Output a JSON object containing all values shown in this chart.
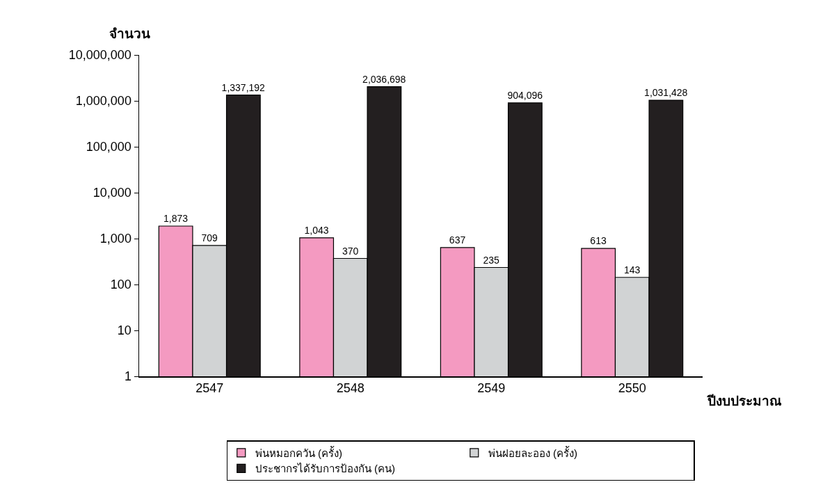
{
  "chart_data": {
    "type": "bar",
    "ylabel": "จำนวน",
    "xlabel": "ปีงบประมาณ",
    "categories": [
      "2547",
      "2548",
      "2549",
      "2550"
    ],
    "series": [
      {
        "name": "พ่นหมอกควัน (ครั้ง)",
        "color": "#f49ac1",
        "values": [
          1873,
          1043,
          637,
          613
        ],
        "value_labels": [
          "1,873",
          "1,043",
          "637",
          "613"
        ]
      },
      {
        "name": "พ่นฝอยละออง (ครั้ง)",
        "color": "#d1d3d4",
        "values": [
          709,
          370,
          235,
          143
        ],
        "value_labels": [
          "709",
          "370",
          "235",
          "143"
        ]
      },
      {
        "name": "ประชากรได้รับการป้องกัน (คน)",
        "color": "#231f20",
        "values": [
          1337192,
          2036698,
          904096,
          1031428
        ],
        "value_labels": [
          "1,337,192",
          "2,036,698",
          "904,096",
          "1,031,428"
        ]
      }
    ],
    "log": "y",
    "ylim": [
      1,
      10000000
    ],
    "yticks": [
      {
        "value": 1,
        "label": "1"
      },
      {
        "value": 10,
        "label": "10"
      },
      {
        "value": 100,
        "label": "100"
      },
      {
        "value": 1000,
        "label": "1,000"
      },
      {
        "value": 10000,
        "label": "10,000"
      },
      {
        "value": 100000,
        "label": "100,000"
      },
      {
        "value": 1000000,
        "label": "1,000,000"
      },
      {
        "value": 10000000,
        "label": "10,000,000"
      }
    ],
    "grid": false,
    "legend": "bottom"
  }
}
